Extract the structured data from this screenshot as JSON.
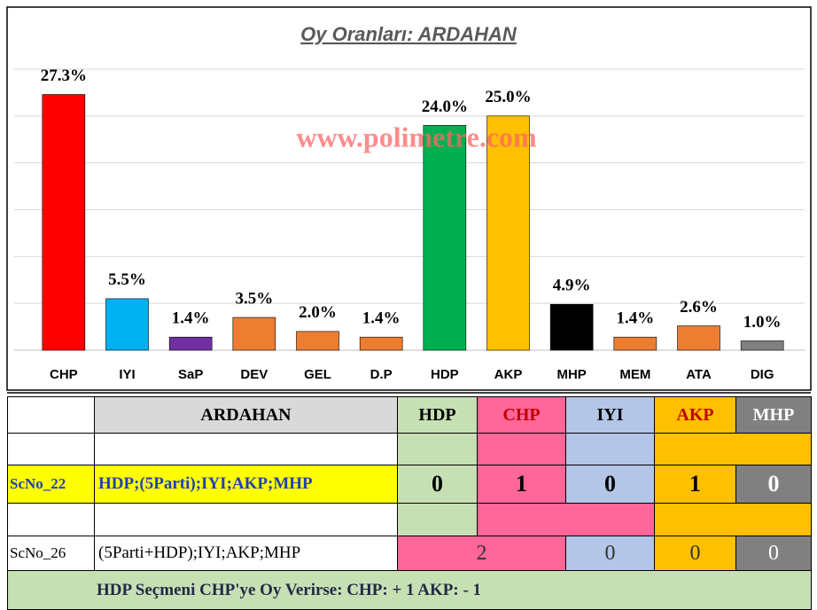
{
  "chart_data": {
    "type": "bar",
    "title": "Oy Oranları: ARDAHAN",
    "watermark": "www.polimetre.com",
    "categories": [
      "CHP",
      "IYI",
      "SaP",
      "DEV",
      "GEL",
      "D.P",
      "HDP",
      "AKP",
      "MHP",
      "MEM",
      "ATA",
      "DIG"
    ],
    "values": [
      27.3,
      5.5,
      1.4,
      3.5,
      2.0,
      1.4,
      24.0,
      25.0,
      4.9,
      1.4,
      2.6,
      1.0
    ],
    "value_labels": [
      "27.3%",
      "5.5%",
      "1.4%",
      "3.5%",
      "2.0%",
      "1.4%",
      "24.0%",
      "25.0%",
      "4.9%",
      "1.4%",
      "2.6%",
      "1.0%"
    ],
    "colors": [
      "#ff0000",
      "#00b0f0",
      "#7030a0",
      "#ed7d31",
      "#ed7d31",
      "#ed7d31",
      "#00b050",
      "#ffc000",
      "#000000",
      "#ed7d31",
      "#ed7d31",
      "#808080"
    ],
    "ylim": [
      0,
      30
    ],
    "yticks": [
      0,
      5,
      10,
      15,
      20,
      25,
      30
    ],
    "grid": true
  },
  "table": {
    "header": [
      "ARDAHAN",
      "HDP",
      "CHP",
      "IYI",
      "AKP",
      "MHP"
    ],
    "rows": [
      {
        "label": "ScNo_22",
        "name": "HDP;(5Parti);IYI;AKP;MHP",
        "values": [
          0,
          1,
          0,
          1,
          0
        ]
      },
      {
        "label": "ScNo_26",
        "name": "(5Parti+HDP);IYI;AKP;MHP",
        "values": [
          2,
          0,
          0,
          0
        ]
      }
    ],
    "footer": "HDP Seçmeni CHP'ye Oy Verirse: CHP: + 1  AKP: - 1"
  }
}
